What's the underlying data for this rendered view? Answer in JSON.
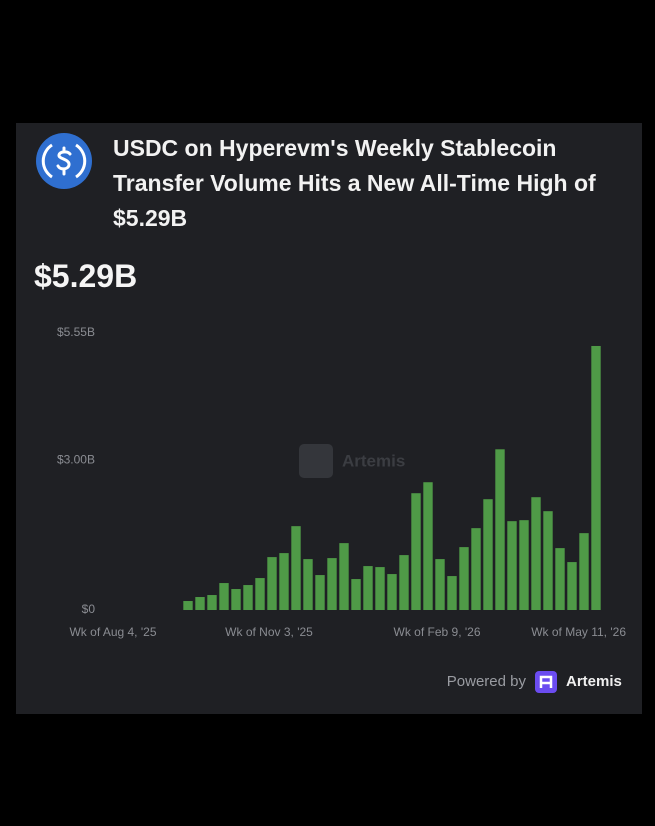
{
  "header": {
    "title": "USDC on Hyperevm's Weekly Stablecoin Transfer Volume Hits a New All-Time High of $5.29B",
    "headline": "$5.29B"
  },
  "chart_data": {
    "type": "bar",
    "watermark": "Artemis",
    "color": "#4f9a47",
    "categories": [
      "Wk of Aug 4, '25",
      null,
      null,
      null,
      null,
      null,
      null,
      null,
      null,
      null,
      null,
      null,
      null,
      "Wk of Nov 3, '25",
      null,
      null,
      null,
      null,
      null,
      null,
      null,
      null,
      null,
      null,
      null,
      null,
      null,
      "Wk of Feb 9, '26",
      null,
      null,
      null,
      null,
      null,
      null,
      null,
      null,
      null,
      null,
      null,
      null,
      "Wk of May 11, '26"
    ],
    "values": [
      null,
      null,
      null,
      null,
      null,
      null,
      0.18,
      0.26,
      0.3,
      0.54,
      0.42,
      0.5,
      0.64,
      1.06,
      1.14,
      1.68,
      1.02,
      0.7,
      1.04,
      1.34,
      0.62,
      0.88,
      0.86,
      0.72,
      1.1,
      2.34,
      2.56,
      1.02,
      0.68,
      1.26,
      1.64,
      2.22,
      3.22,
      1.78,
      1.8,
      2.26,
      1.98,
      1.24,
      0.96,
      1.54,
      5.29
    ],
    "ylim": [
      0,
      5.55
    ],
    "yticks": [
      {
        "value": 0,
        "label": "$0"
      },
      {
        "value": 3,
        "label": "$3.00B"
      },
      {
        "value": 5.55,
        "label": "$5.55B"
      }
    ]
  },
  "footer": {
    "powered_by": "Powered by",
    "brand": "Artemis"
  }
}
